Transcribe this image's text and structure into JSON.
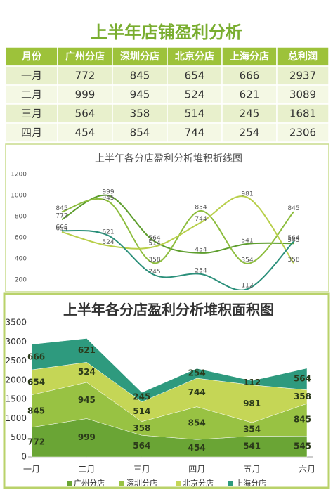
{
  "title": "上半年店铺盈利分析",
  "table": {
    "header": [
      "月份",
      "广州分店",
      "深圳分店",
      "北京分店",
      "上海分店",
      "总利润"
    ],
    "rows": [
      [
        "一月",
        772,
        845,
        654,
        666,
        2937
      ],
      [
        "二月",
        999,
        945,
        524,
        621,
        3089
      ],
      [
        "三月",
        564,
        358,
        514,
        245,
        1681
      ],
      [
        "四月",
        454,
        854,
        744,
        254,
        2306
      ]
    ]
  },
  "chart_data": [
    {
      "type": "line",
      "title": "上半年各分店盈利分析堆积折线图",
      "smooth": true,
      "grid": false,
      "ylim": [
        100,
        1300
      ],
      "yticks": [
        200,
        400,
        600,
        800,
        1000,
        1200
      ],
      "series": [
        {
          "color": "#5e9e2e",
          "values": [
            772,
            999,
            564,
            454,
            541,
            545
          ]
        },
        {
          "color": "#8dbd3e",
          "values": [
            845,
            945,
            358,
            854,
            354,
            845
          ]
        },
        {
          "color": "#b8cf4a",
          "values": [
            654,
            524,
            514,
            744,
            981,
            358
          ]
        },
        {
          "color": "#2a8f7a",
          "values": [
            666,
            621,
            245,
            254,
            112,
            564
          ]
        }
      ]
    },
    {
      "type": "stacked_area",
      "title": "上半年各分店盈利分析堆积面积图",
      "grid": false,
      "legend": "bottom",
      "categories": [
        "一月",
        "二月",
        "三月",
        "四月",
        "五月",
        "六月"
      ],
      "ylim": [
        0,
        3500
      ],
      "yticks": [
        0,
        500,
        1000,
        1500,
        2000,
        2500,
        3000,
        3500
      ],
      "series": [
        {
          "name": "广州分店",
          "color": "#6aa535",
          "values": [
            772,
            999,
            564,
            454,
            541,
            545
          ]
        },
        {
          "name": "深圳分店",
          "color": "#98c243",
          "values": [
            845,
            945,
            358,
            854,
            354,
            845
          ]
        },
        {
          "name": "北京分店",
          "color": "#c5d656",
          "values": [
            654,
            524,
            514,
            744,
            981,
            358
          ]
        },
        {
          "name": "上海分店",
          "color": "#2e9a7e",
          "values": [
            666,
            621,
            245,
            254,
            112,
            564
          ]
        }
      ]
    }
  ]
}
